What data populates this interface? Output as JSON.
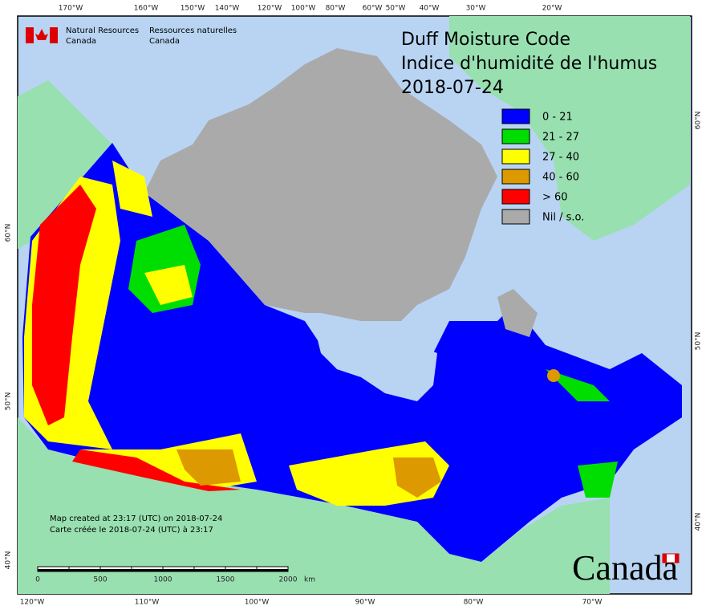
{
  "header": {
    "agency_en": "Natural Resources",
    "agency_en_2": "Canada",
    "agency_fr": "Ressources naturelles",
    "agency_fr_2": "Canada"
  },
  "title": {
    "line1": "Duff Moisture Code",
    "line2": "Indice d'humidité de l'humus",
    "date": "2018-07-24"
  },
  "legend": {
    "items": [
      {
        "label": "0 - 21",
        "color": "#0000ff"
      },
      {
        "label": "21 - 27",
        "color": "#00dd00"
      },
      {
        "label": "27 - 40",
        "color": "#ffff00"
      },
      {
        "label": "40 - 60",
        "color": "#dd9900"
      },
      {
        "label": "> 60",
        "color": "#ff0000"
      },
      {
        "label": "Nil / s.o.",
        "color": "#aaaaaa"
      }
    ]
  },
  "graticule": {
    "top": [
      "170°W",
      "160°W",
      "150°W",
      "140°W",
      "120°W",
      "100°W",
      "80°W",
      "60°W",
      "50°W",
      "40°W",
      "30°W",
      "20°W"
    ],
    "bottom": [
      "120°W",
      "110°W",
      "100°W",
      "90°W",
      "80°W",
      "70°W"
    ],
    "left": [
      "60°N",
      "50°N",
      "40°N"
    ],
    "right": [
      "60°N",
      "50°N",
      "40°N"
    ]
  },
  "credits": {
    "line1": "Map created at 23:17 (UTC) on 2018-07-24",
    "line2": "Carte créée le 2018-07-24 (UTC) à 23:17"
  },
  "scale": {
    "ticks": [
      "0",
      "500",
      "1000",
      "1500",
      "2000"
    ],
    "unit": "km"
  },
  "wordmark": "Canada"
}
